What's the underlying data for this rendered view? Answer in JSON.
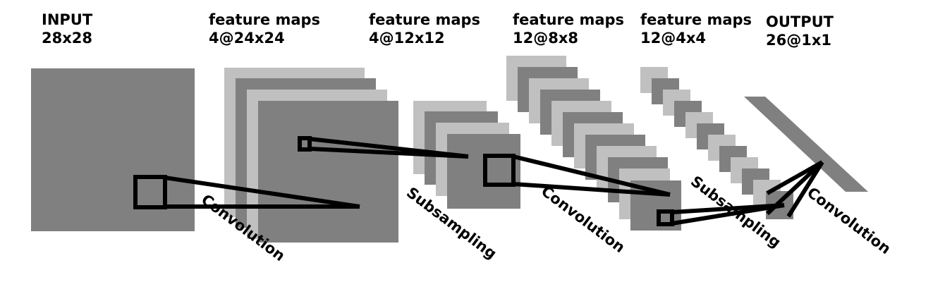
{
  "stages": [
    {
      "title": "INPUT",
      "size": "28x28"
    },
    {
      "title": "feature maps",
      "size": "4@24x24"
    },
    {
      "title": "feature maps",
      "size": "4@12x12"
    },
    {
      "title": "feature maps",
      "size": "12@8x8"
    },
    {
      "title": "feature maps",
      "size": "12@4x4"
    },
    {
      "title": "OUTPUT",
      "size": "26@1x1"
    }
  ],
  "operations": [
    "Convolution",
    "Subsampling",
    "Convolution",
    "Subsampling",
    "Convolution"
  ],
  "colors": {
    "dark": "#808080",
    "light": "#c0c0c0",
    "line": "#000000",
    "background": "#ffffff"
  }
}
